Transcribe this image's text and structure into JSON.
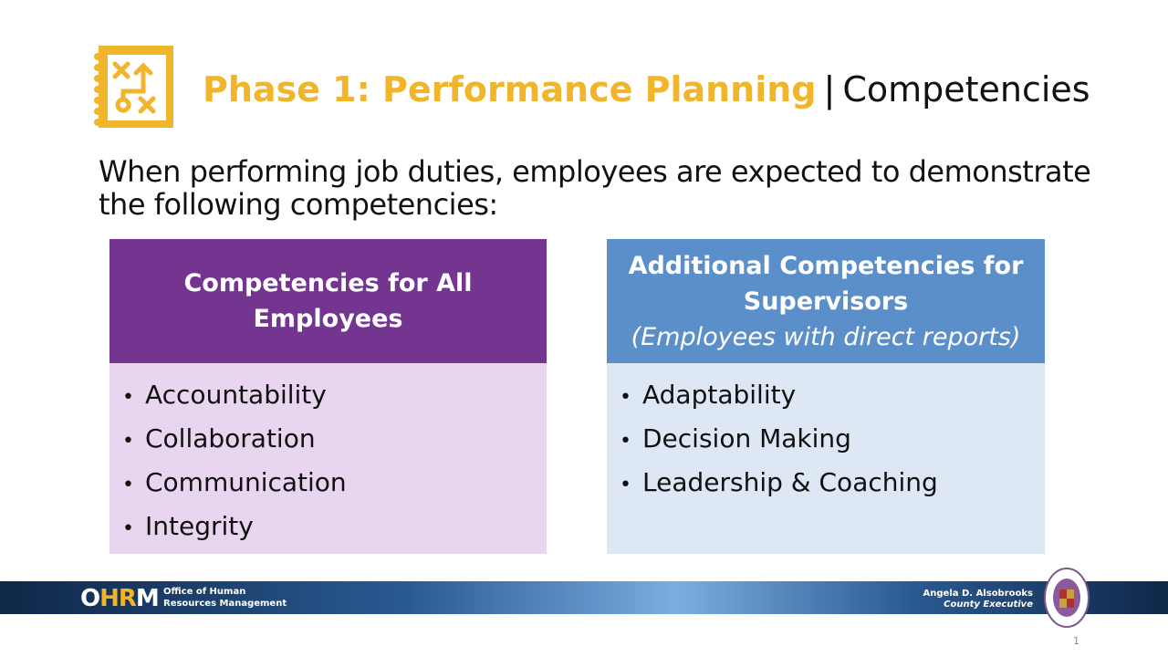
{
  "header": {
    "title_highlight": "Phase 1: Performance Planning",
    "separator": "|",
    "title_rest": "Competencies",
    "icon": "strategy-plan-icon",
    "accent": "#F0B52A"
  },
  "intro": "When performing job duties, employees are expected to demonstrate the following competencies:",
  "all_employees": {
    "title": "Competencies for All Employees",
    "header_color": "#743591",
    "body_color": "#E8D5F0",
    "items": [
      "Accountability",
      "Collaboration",
      "Communication",
      "Integrity"
    ]
  },
  "supervisors": {
    "title": "Additional Competencies for Supervisors",
    "subtitle": "(Employees with direct reports)",
    "header_color": "#5B8FC9",
    "body_color": "#DEE8F4",
    "items": [
      "Adaptability",
      "Decision Making",
      "Leadership & Coaching"
    ]
  },
  "footer": {
    "logo": "OHRM",
    "org_line1": "Office of Human",
    "org_line2": "Resources Management",
    "exec_name": "Angela D. Alsobrooks",
    "exec_title": "County Executive",
    "seal": "prince-georges-county-seal"
  },
  "page_number": "1"
}
